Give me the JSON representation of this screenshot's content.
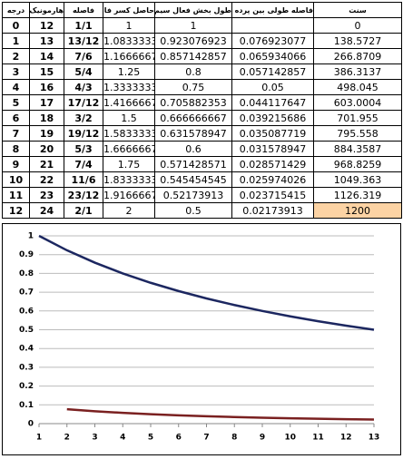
{
  "table": {
    "header": [
      "درجه",
      "هارمونیک",
      "فاصله",
      "حاصل کسر فاصله",
      "طول بخش فعال سیم",
      "فاصله طولی بین پرده ها",
      "سنت"
    ],
    "rows": [
      [
        "0",
        "12",
        "1/1",
        "1",
        "1",
        null,
        "0"
      ],
      [
        "1",
        "13",
        "13/12",
        "1.0833333",
        "0.923076923",
        "0.076923077",
        "138.5727"
      ],
      [
        "2",
        "14",
        "7/6",
        "1.1666667",
        "0.857142857",
        "0.065934066",
        "266.8709"
      ],
      [
        "3",
        "15",
        "5/4",
        "1.25",
        "0.8",
        "0.057142857",
        "386.3137"
      ],
      [
        "4",
        "16",
        "4/3",
        "1.3333333",
        "0.75",
        "0.05",
        "498.045"
      ],
      [
        "5",
        "17",
        "17/12",
        "1.4166667",
        "0.705882353",
        "0.044117647",
        "603.0004"
      ],
      [
        "6",
        "18",
        "3/2",
        "1.5",
        "0.666666667",
        "0.039215686",
        "701.955"
      ],
      [
        "7",
        "19",
        "19/12",
        "1.5833333",
        "0.631578947",
        "0.035087719",
        "795.558"
      ],
      [
        "8",
        "20",
        "5/3",
        "1.6666667",
        "0.6",
        "0.031578947",
        "884.3587"
      ],
      [
        "9",
        "21",
        "7/4",
        "1.75",
        "0.571428571",
        "0.028571429",
        "968.8259"
      ],
      [
        "10",
        "22",
        "11/6",
        "1.8333333",
        "0.545454545",
        "0.025974026",
        "1049.363"
      ],
      [
        "11",
        "23",
        "23/12",
        "1.9166667",
        "0.52173913",
        "0.023715415",
        "1126.319"
      ],
      [
        "12",
        "24",
        "2/1",
        "2",
        "0.5",
        "0.02173913",
        "1200"
      ]
    ]
  },
  "chart_data": {
    "type": "line",
    "x": [
      1,
      2,
      3,
      4,
      5,
      6,
      7,
      8,
      9,
      10,
      11,
      12,
      13
    ],
    "series": [
      {
        "color": "#1c2760",
        "values": [
          1,
          0.923076923,
          0.857142857,
          0.8,
          0.75,
          0.705882353,
          0.666666667,
          0.631578947,
          0.6,
          0.571428571,
          0.545454545,
          0.52173913,
          0.5
        ]
      },
      {
        "color": "#7a2020",
        "values": [
          null,
          0.076923077,
          0.065934066,
          0.057142857,
          0.05,
          0.044117647,
          0.039215686,
          0.035087719,
          0.031578947,
          0.028571429,
          0.025974026,
          0.023715415,
          0.02173913
        ]
      }
    ],
    "xlim": [
      1,
      13
    ],
    "xticks": [
      1,
      2,
      3,
      4,
      5,
      6,
      7,
      8,
      9,
      10,
      11,
      12,
      13
    ],
    "ylim": [
      0,
      1
    ],
    "yticks": [
      0,
      0.1,
      0.2,
      0.3,
      0.4,
      0.5,
      0.6,
      0.7,
      0.8,
      0.9,
      1
    ],
    "grid": true
  }
}
